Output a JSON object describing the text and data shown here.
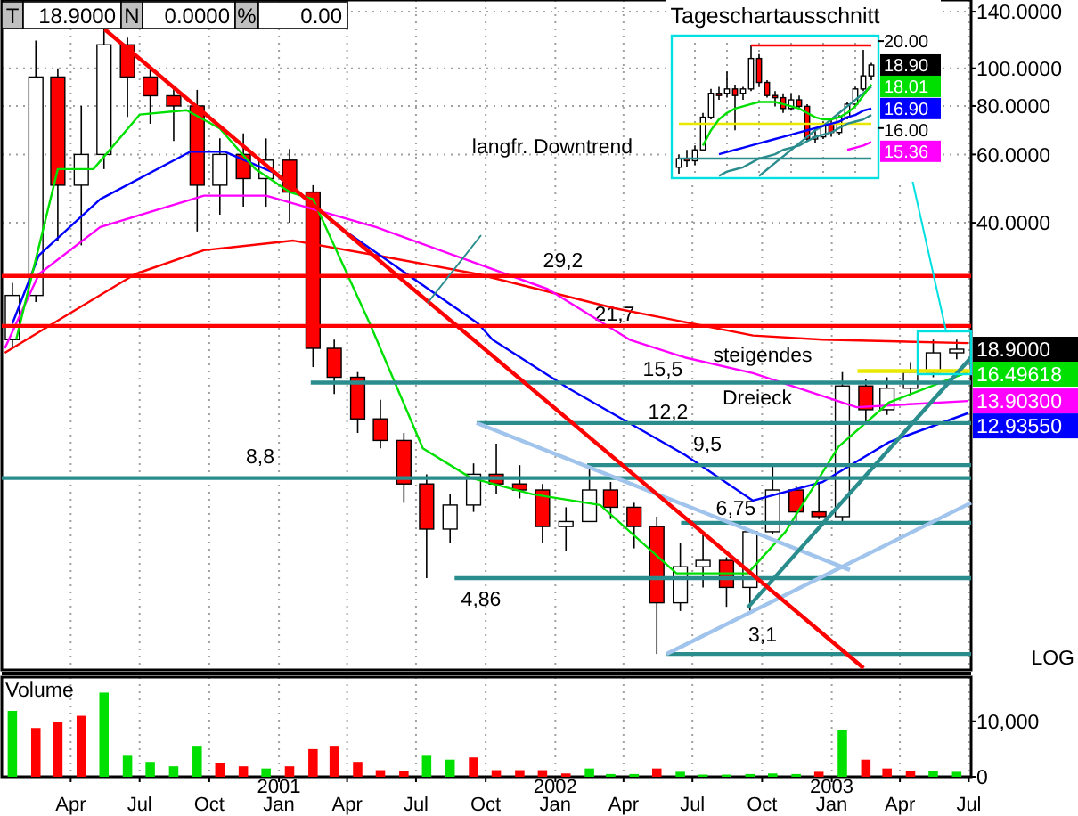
{
  "chart_data": [
    {
      "type": "candlestick",
      "log": "y",
      "grid": true,
      "tick_labels": "y",
      "xlim": [
        "2000-01-01",
        "2003-07-04"
      ],
      "xticks": [
        {
          "value": "2000-04-01",
          "label": null
        },
        {
          "value": "2000-07-01",
          "label": null
        },
        {
          "value": "2000-10-01",
          "label": null
        },
        {
          "value": "2001-01-01",
          "label": null
        },
        {
          "value": "2001-04-01",
          "label": null
        },
        {
          "value": "2001-07-01",
          "label": null
        },
        {
          "value": "2001-10-01",
          "label": null
        },
        {
          "value": "2002-01-01",
          "label": null
        },
        {
          "value": "2002-04-01",
          "label": null
        },
        {
          "value": "2002-07-01",
          "label": null
        },
        {
          "value": "2002-10-01",
          "label": null
        },
        {
          "value": "2003-01-01",
          "label": null
        },
        {
          "value": "2003-04-01",
          "label": null
        },
        {
          "value": "2003-07-01",
          "label": null
        }
      ],
      "ylim": [
        2.82,
        150
      ],
      "yticks": [
        {
          "value": 140,
          "label": "140.0000"
        },
        {
          "value": 100,
          "label": "100.0000"
        },
        {
          "value": 80,
          "label": "80.0000"
        },
        {
          "value": 60,
          "label": "60.0000"
        },
        {
          "value": 40,
          "label": "40.0000"
        }
      ],
      "x": [
        "2000-01-15",
        "2000-02-15",
        "2000-03-15",
        "2000-04-15",
        "2000-05-15",
        "2000-06-15",
        "2000-07-15",
        "2000-08-15",
        "2000-09-15",
        "2000-10-15",
        "2000-11-15",
        "2000-12-15",
        "2001-01-15",
        "2001-02-15",
        "2001-03-15",
        "2001-04-15",
        "2001-05-15",
        "2001-06-15",
        "2001-07-15",
        "2001-08-15",
        "2001-09-15",
        "2001-10-15",
        "2001-11-15",
        "2001-12-15",
        "2002-01-15",
        "2002-02-15",
        "2002-03-15",
        "2002-04-15",
        "2002-05-15",
        "2002-06-15",
        "2002-07-15",
        "2002-08-15",
        "2002-09-15",
        "2002-10-15",
        "2002-11-15",
        "2002-12-15",
        "2003-01-15",
        "2003-02-15",
        "2003-03-15",
        "2003-04-15",
        "2003-05-15",
        "2003-06-15"
      ],
      "ohlc": [
        [
          20,
          28,
          19,
          26
        ],
        [
          26,
          118,
          25,
          95
        ],
        [
          95,
          100,
          36,
          50
        ],
        [
          50,
          80,
          35,
          60
        ],
        [
          60,
          126,
          55,
          115
        ],
        [
          115,
          120,
          75,
          95
        ],
        [
          95,
          100,
          72,
          85
        ],
        [
          85,
          90,
          65,
          80
        ],
        [
          80,
          88,
          38,
          50
        ],
        [
          50,
          66,
          42,
          60
        ],
        [
          60,
          68,
          44,
          52
        ],
        [
          52,
          66,
          44,
          58
        ],
        [
          58,
          62,
          40,
          48
        ],
        [
          48,
          50,
          17,
          19
        ],
        [
          19,
          20,
          14.5,
          16
        ],
        [
          16,
          16.5,
          11.5,
          12.5
        ],
        [
          12.5,
          14,
          10.5,
          11
        ],
        [
          11,
          11.5,
          7.6,
          8.5
        ],
        [
          8.5,
          9,
          4.86,
          6.5
        ],
        [
          6.5,
          8,
          6,
          7.5
        ],
        [
          7.5,
          9.6,
          7.2,
          9
        ],
        [
          9,
          10.8,
          8,
          8.5
        ],
        [
          8.5,
          9.5,
          7.8,
          8.2
        ],
        [
          8.2,
          8.5,
          6,
          6.6
        ],
        [
          6.6,
          7.4,
          5.7,
          6.8
        ],
        [
          6.8,
          9.4,
          6.8,
          8.2
        ],
        [
          8.2,
          8.6,
          6.9,
          7.4
        ],
        [
          7.4,
          7.6,
          5.8,
          6.6
        ],
        [
          6.6,
          7,
          3.1,
          4.2
        ],
        [
          4.2,
          6,
          4,
          5.2
        ],
        [
          5.2,
          6.3,
          4.6,
          5.4
        ],
        [
          5.4,
          5.5,
          4.1,
          4.6
        ],
        [
          4.6,
          6.5,
          4,
          6.4
        ],
        [
          6.4,
          9.6,
          6.3,
          8.2
        ],
        [
          8.2,
          8.4,
          6.8,
          7.2
        ],
        [
          7.2,
          8.6,
          6.9,
          7
        ],
        [
          7,
          16.5,
          6.8,
          15.2
        ],
        [
          15.2,
          15.8,
          12.2,
          13.2
        ],
        [
          13.2,
          16,
          12.8,
          15
        ],
        [
          15,
          17.5,
          14.3,
          16.5
        ],
        [
          16.5,
          20,
          16,
          18.5
        ],
        [
          18.5,
          20,
          17.8,
          18.9
        ]
      ],
      "value_labels": [
        null,
        null,
        null,
        null,
        null,
        null,
        null,
        null,
        null,
        null,
        null,
        null,
        null,
        null,
        null,
        null,
        null,
        null,
        null,
        null,
        null,
        null,
        null,
        null,
        null,
        null,
        null,
        null,
        null,
        null,
        null,
        null,
        null,
        null,
        null,
        null,
        null,
        null,
        null,
        null,
        null,
        "18.9000"
      ],
      "series": [
        {
          "type": "line",
          "color": "#ff0000",
          "x": [
            "2000-01-05",
            "2000-03-25",
            "2000-06-25",
            "2000-09-24",
            "2001-01-20",
            "2001-05-09",
            "2001-09-21",
            "2002-03-20",
            "2002-09-19",
            "2002-12-20",
            "2003-06-30"
          ],
          "values": [
            18.5,
            23,
            29.5,
            34,
            36,
            33,
            29.5,
            24.1,
            20.5,
            20,
            19.6
          ]
        },
        {
          "type": "line",
          "color": "#ff00ff",
          "x": [
            "2000-01-05",
            "2000-02-19",
            "2000-05-10",
            "2000-09-24",
            "2000-12-15",
            "2001-05-09",
            "2001-12-22",
            "2002-04-09",
            "2002-06-21",
            "2002-09-19",
            "2003-02-03",
            "2003-06-30"
          ],
          "values": [
            19,
            29.5,
            39,
            47,
            47,
            39,
            27,
            20,
            18,
            16.4,
            13.4,
            13.903
          ],
          "value_labels": [
            null,
            null,
            null,
            null,
            null,
            null,
            null,
            null,
            null,
            null,
            null,
            "13.90300"
          ]
        },
        {
          "type": "line",
          "color": "#0000ff",
          "x": [
            "2000-01-15",
            "2000-02-19",
            "2000-05-10",
            "2000-09-06",
            "2000-10-21",
            "2000-12-24",
            "2001-03-22",
            "2001-09-21",
            "2001-10-10",
            "2002-01-18",
            "2002-06-21",
            "2002-09-19",
            "2002-12-20",
            "2003-03-18",
            "2003-06-30"
          ],
          "values": [
            22,
            33,
            46,
            61,
            61,
            54,
            39,
            22,
            20,
            15,
            10.1,
            7.7,
            8.6,
            10.9,
            12.9355
          ],
          "value_labels": [
            null,
            null,
            null,
            null,
            null,
            null,
            null,
            null,
            null,
            null,
            null,
            null,
            null,
            null,
            "12.93550"
          ]
        },
        {
          "type": "line",
          "color": "#00e000",
          "x": [
            "2000-01-20",
            "2000-03-15",
            "2000-05-01",
            "2000-07-01",
            "2000-09-01",
            "2000-10-15",
            "2000-12-01",
            "2001-01-15",
            "2001-02-15",
            "2001-05-01",
            "2001-07-10",
            "2001-09-12",
            "2001-12-01",
            "2002-03-01",
            "2002-06-10",
            "2002-09-12",
            "2002-11-01",
            "2003-01-10",
            "2003-03-18",
            "2003-06-30"
          ],
          "values": [
            20,
            55,
            55,
            76,
            78,
            70,
            55,
            48,
            46,
            22,
            10.5,
            8.8,
            8,
            7.5,
            5,
            5,
            6.4,
            10.6,
            13.8,
            16.49618
          ],
          "value_labels": [
            null,
            null,
            null,
            null,
            null,
            null,
            null,
            null,
            null,
            null,
            null,
            null,
            null,
            null,
            null,
            null,
            null,
            null,
            null,
            "16.49618"
          ]
        },
        {
          "type": "line",
          "color": "#ff0000",
          "x": [
            "2000-01-01",
            "2003-07-04"
          ],
          "values": [
            29.2,
            29.2
          ]
        },
        {
          "type": "line",
          "color": "#ff0000",
          "x": [
            "2000-01-01",
            "2003-07-04"
          ],
          "values": [
            21.7,
            21.7
          ]
        },
        {
          "type": "line",
          "color": "#2a8c8c",
          "x": [
            "2001-02-12",
            "2003-07-04"
          ],
          "values": [
            15.5,
            15.5
          ]
        },
        {
          "type": "line",
          "color": "#2a8c8c",
          "x": [
            "2001-09-19",
            "2003-07-04"
          ],
          "values": [
            12.2,
            12.2
          ]
        },
        {
          "type": "line",
          "color": "#2a8c8c",
          "x": [
            "2002-02-12",
            "2003-07-04"
          ],
          "values": [
            9.5,
            9.5
          ]
        },
        {
          "type": "line",
          "color": "#2a8c8c",
          "x": [
            "2000-01-01",
            "2003-07-04"
          ],
          "values": [
            8.8,
            8.8
          ]
        },
        {
          "type": "line",
          "color": "#2a8c8c",
          "x": [
            "2002-06-16",
            "2003-07-04"
          ],
          "values": [
            6.75,
            6.75
          ]
        },
        {
          "type": "line",
          "color": "#2a8c8c",
          "x": [
            "2001-08-21",
            "2003-07-04"
          ],
          "values": [
            4.86,
            4.86
          ]
        },
        {
          "type": "line",
          "color": "#2a8c8c",
          "x": [
            "2002-05-28",
            "2003-07-04"
          ],
          "values": [
            3.1,
            3.1
          ]
        },
        {
          "type": "line",
          "color": "#e8e800",
          "x": [
            "2003-02-04",
            "2003-07-04"
          ],
          "values": [
            16.6,
            16.6
          ]
        },
        {
          "type": "line",
          "color": "#a0c4ec",
          "x": [
            "2001-09-19",
            "2003-01-25"
          ],
          "values": [
            12.2,
            5.1
          ]
        },
        {
          "type": "line",
          "color": "#a0c4ec",
          "x": [
            "2002-05-28",
            "2003-07-04"
          ],
          "values": [
            3.1,
            7.6
          ]
        },
        {
          "type": "line",
          "color": "#2a8c8c",
          "x": [
            "2002-09-12",
            "2003-07-04"
          ],
          "values": [
            4.08,
            18
          ]
        },
        {
          "type": "line",
          "color": "#ff0000",
          "x": [
            "2000-05-16",
            "2003-02-12"
          ],
          "values": [
            126,
            2.85
          ]
        }
      ],
      "annotations": [
        "T",
        "18.9000",
        "N",
        "0.0000",
        "%",
        "0.00",
        "LOG",
        "29,2",
        "21,7",
        "15,5",
        "12,2",
        "9,5",
        "8,8",
        "6,75",
        "4,86",
        "3,1",
        "langfr. Downtrend",
        "steigendes",
        "Dreieck"
      ]
    },
    {
      "type": "candlestick",
      "title": "Tageschartausschnitt",
      "grid": "x",
      "tick_labels": "y",
      "categories": [
        null,
        null,
        null,
        null,
        null,
        null,
        null,
        null,
        null,
        null,
        null,
        null,
        null,
        null,
        null,
        null,
        null,
        null,
        null,
        null,
        null,
        null,
        null,
        null,
        null
      ],
      "ylim": [
        13.7,
        20.25
      ],
      "yticks": [
        {
          "value": 20,
          "label": "20.00"
        },
        {
          "value": 16,
          "label": "16.00"
        }
      ],
      "ohlc": [
        [
          14.2,
          14.8,
          13.9,
          14.6
        ],
        [
          14.6,
          15,
          14.2,
          14.5
        ],
        [
          14.5,
          15.2,
          14.3,
          15
        ],
        [
          15,
          16.7,
          15,
          16.5
        ],
        [
          16.5,
          17.8,
          16.4,
          17.6
        ],
        [
          17.6,
          17.9,
          17.3,
          17.5
        ],
        [
          17.6,
          18.6,
          17.4,
          17.8
        ],
        [
          17.8,
          18,
          15.9,
          17.5
        ],
        [
          17.6,
          17.9,
          17.3,
          17.8
        ],
        [
          17.8,
          19.8,
          17.7,
          19.2
        ],
        [
          19.2,
          19.4,
          17.9,
          18.1
        ],
        [
          18.1,
          18.2,
          17.4,
          17.5
        ],
        [
          17.5,
          17.7,
          17,
          17.4
        ],
        [
          17.4,
          17.6,
          16.7,
          16.9
        ],
        [
          16.9,
          17.6,
          16.8,
          17.3
        ],
        [
          17.3,
          17.5,
          16.9,
          17
        ],
        [
          17,
          17.1,
          15.4,
          15.5
        ],
        [
          15.5,
          16,
          15.3,
          15.6
        ],
        [
          15.6,
          16.3,
          15.5,
          16.2
        ],
        [
          16.2,
          16.4,
          15.6,
          15.8
        ],
        [
          15.8,
          16.6,
          15.7,
          16.5
        ],
        [
          16.5,
          17.2,
          16.4,
          17.1
        ],
        [
          17.1,
          17.9,
          17,
          17.8
        ],
        [
          17.8,
          19.6,
          17.7,
          18.4
        ],
        [
          18.4,
          19,
          18.2,
          18.9
        ]
      ],
      "value_labels": [
        null,
        null,
        null,
        null,
        null,
        null,
        null,
        null,
        null,
        null,
        null,
        null,
        null,
        null,
        null,
        null,
        null,
        null,
        null,
        null,
        null,
        null,
        null,
        null,
        "18.90"
      ],
      "series": [
        {
          "type": "line",
          "color": "#2a8c8c",
          "values": [
            14.6,
            14.6,
            14.6,
            14.6,
            14.6,
            14.6,
            14.6,
            14.6,
            14.6,
            14.6,
            14.6,
            14.6,
            14.6,
            14.6,
            14.6,
            14.6,
            14.6,
            14.6,
            14.6,
            14.6,
            14.6,
            14.6,
            14.6,
            14.6,
            14.6
          ]
        },
        {
          "type": "line",
          "color": "#e8e800",
          "values": [
            16.2,
            16.2,
            16.2,
            16.2,
            16.2,
            16.2,
            16.2,
            16.2,
            16.2,
            16.2,
            16.2,
            16.2,
            16.2,
            16.2,
            16.2,
            16.2,
            16.2,
            16.2,
            16.2,
            16.2,
            16.2,
            16.2,
            16.2,
            16.2,
            16.2
          ]
        },
        {
          "type": "line",
          "color": "#ff0000",
          "values": [
            null,
            null,
            null,
            null,
            null,
            null,
            null,
            null,
            null,
            19.8,
            19.8,
            19.8,
            19.8,
            19.8,
            19.8,
            19.8,
            19.8,
            19.8,
            19.8,
            19.8,
            19.8,
            19.8,
            19.8,
            19.8,
            19.8
          ]
        },
        {
          "type": "line",
          "color": "#2a8c8c",
          "values": [
            null,
            null,
            null,
            null,
            null,
            13.8,
            14,
            14.1,
            14.2,
            14.4,
            14.6,
            14.7,
            14.8,
            15,
            15.1,
            15.2,
            15.4,
            15.6,
            15.7,
            15.8,
            16,
            16.2,
            16.3,
            16.4,
            16.6
          ]
        },
        {
          "type": "line",
          "color": "#2a8c8c",
          "values": [
            null,
            null,
            null,
            null,
            null,
            null,
            null,
            null,
            null,
            null,
            13.8,
            14.1,
            14.4,
            14.7,
            15,
            15.3,
            15.6,
            15.9,
            16.1,
            16.4,
            16.7,
            17,
            17.3,
            17.6,
            17.9
          ]
        },
        {
          "type": "line",
          "color": "#ff00ff",
          "values": [
            null,
            null,
            null,
            null,
            null,
            null,
            null,
            null,
            null,
            null,
            null,
            null,
            null,
            null,
            null,
            null,
            null,
            null,
            null,
            null,
            null,
            15,
            15.1,
            15.2,
            15.36
          ],
          "value_labels": [
            null,
            null,
            null,
            null,
            null,
            null,
            null,
            null,
            null,
            null,
            null,
            null,
            null,
            null,
            null,
            null,
            null,
            null,
            null,
            null,
            null,
            null,
            null,
            null,
            "15.36"
          ]
        },
        {
          "type": "line",
          "color": "#0000ff",
          "values": [
            null,
            null,
            null,
            null,
            null,
            14.8,
            14.9,
            15,
            15.1,
            15.2,
            15.3,
            15.4,
            15.5,
            15.6,
            15.7,
            15.8,
            15.9,
            16,
            16.1,
            16.2,
            16.3,
            16.5,
            16.6,
            16.8,
            16.9
          ],
          "value_labels": [
            null,
            null,
            null,
            null,
            null,
            null,
            null,
            null,
            null,
            null,
            null,
            null,
            null,
            null,
            null,
            null,
            null,
            null,
            null,
            null,
            null,
            null,
            null,
            null,
            "16.90"
          ]
        },
        {
          "type": "line",
          "color": "#00e000",
          "values": [
            null,
            null,
            null,
            15.2,
            15.9,
            16.4,
            16.7,
            16.9,
            17,
            17.1,
            17.2,
            17.2,
            17.2,
            17.1,
            17,
            16.9,
            16.7,
            16.5,
            16.4,
            16.4,
            16.5,
            16.7,
            17,
            17.5,
            18.01
          ],
          "value_labels": [
            null,
            null,
            null,
            null,
            null,
            null,
            null,
            null,
            null,
            null,
            null,
            null,
            null,
            null,
            null,
            null,
            null,
            null,
            null,
            null,
            null,
            null,
            null,
            null,
            "18.01"
          ]
        }
      ]
    },
    {
      "type": "bar",
      "title": "Volume",
      "grid": "x",
      "xlim": [
        "2000-01-01",
        "2003-07-04"
      ],
      "xticks": [
        {
          "value": "2000-04-01",
          "label": "Apr"
        },
        {
          "value": "2000-07-01",
          "label": "Jul"
        },
        {
          "value": "2000-10-01",
          "label": "Oct"
        },
        {
          "value": "2001-01-01",
          "label": "2001\nJan"
        },
        {
          "value": "2001-04-01",
          "label": "Apr"
        },
        {
          "value": "2001-07-01",
          "label": "Jul"
        },
        {
          "value": "2001-10-01",
          "label": "Oct"
        },
        {
          "value": "2002-01-01",
          "label": "2002\nJan"
        },
        {
          "value": "2002-04-01",
          "label": "Apr"
        },
        {
          "value": "2002-07-01",
          "label": "Jul"
        },
        {
          "value": "2002-10-01",
          "label": "Oct"
        },
        {
          "value": "2003-01-01",
          "label": "2003\nJan"
        },
        {
          "value": "2003-04-01",
          "label": "Apr"
        },
        {
          "value": "2003-07-01",
          "label": "Jul"
        }
      ],
      "ylim": [
        0,
        18000
      ],
      "yticks": [
        0,
        {
          "value": 10000,
          "label": "10,000"
        }
      ],
      "x": [
        "2000-01-15",
        "2000-02-15",
        "2000-03-15",
        "2000-04-15",
        "2000-05-15",
        "2000-06-15",
        "2000-07-15",
        "2000-08-15",
        "2000-09-15",
        "2000-10-15",
        "2000-11-15",
        "2000-12-15",
        "2001-01-15",
        "2001-02-15",
        "2001-03-15",
        "2001-04-15",
        "2001-05-15",
        "2001-06-15",
        "2001-07-15",
        "2001-08-15",
        "2001-09-15",
        "2001-10-15",
        "2001-11-15",
        "2001-12-15",
        "2002-01-15",
        "2002-02-15",
        "2002-03-15",
        "2002-04-15",
        "2002-05-15",
        "2002-06-15",
        "2002-07-15",
        "2002-08-15",
        "2002-09-15",
        "2002-10-15",
        "2002-11-15",
        "2002-12-15",
        "2003-01-15",
        "2003-02-15",
        "2003-03-15",
        "2003-04-15",
        "2003-05-15",
        "2003-06-15"
      ],
      "values": [
        11900,
        8800,
        9800,
        11000,
        15200,
        3800,
        2700,
        1900,
        5600,
        2500,
        1900,
        1500,
        1900,
        5000,
        5600,
        2700,
        1200,
        1000,
        3800,
        3100,
        3500,
        1200,
        1200,
        1200,
        600,
        1500,
        500,
        500,
        1500,
        900,
        400,
        400,
        500,
        600,
        500,
        900,
        8400,
        3100,
        1500,
        1000,
        1000,
        900
      ],
      "colors": [
        "#00e000",
        "#ff0000",
        "#ff0000",
        "#ff0000",
        "#00e000",
        "#00e000",
        "#00e000",
        "#00e000",
        "#00e000",
        "#ff0000",
        "#ff0000",
        "#00e000",
        "#ff0000",
        "#ff0000",
        "#ff0000",
        "#ff0000",
        "#ff0000",
        "#ff0000",
        "#00e000",
        "#00e000",
        "#ff0000",
        "#ff0000",
        "#ff0000",
        "#ff0000",
        "#ff0000",
        "#00e000",
        "#00e000",
        "#00e000",
        "#ff0000",
        "#00e000",
        "#00e000",
        "#00e000",
        "#00e000",
        "#00e000",
        "#00e000",
        "#ff0000",
        "#00e000",
        "#ff0000",
        "#ff0000",
        "#ff0000",
        "#00e000",
        "#00e000"
      ]
    }
  ]
}
